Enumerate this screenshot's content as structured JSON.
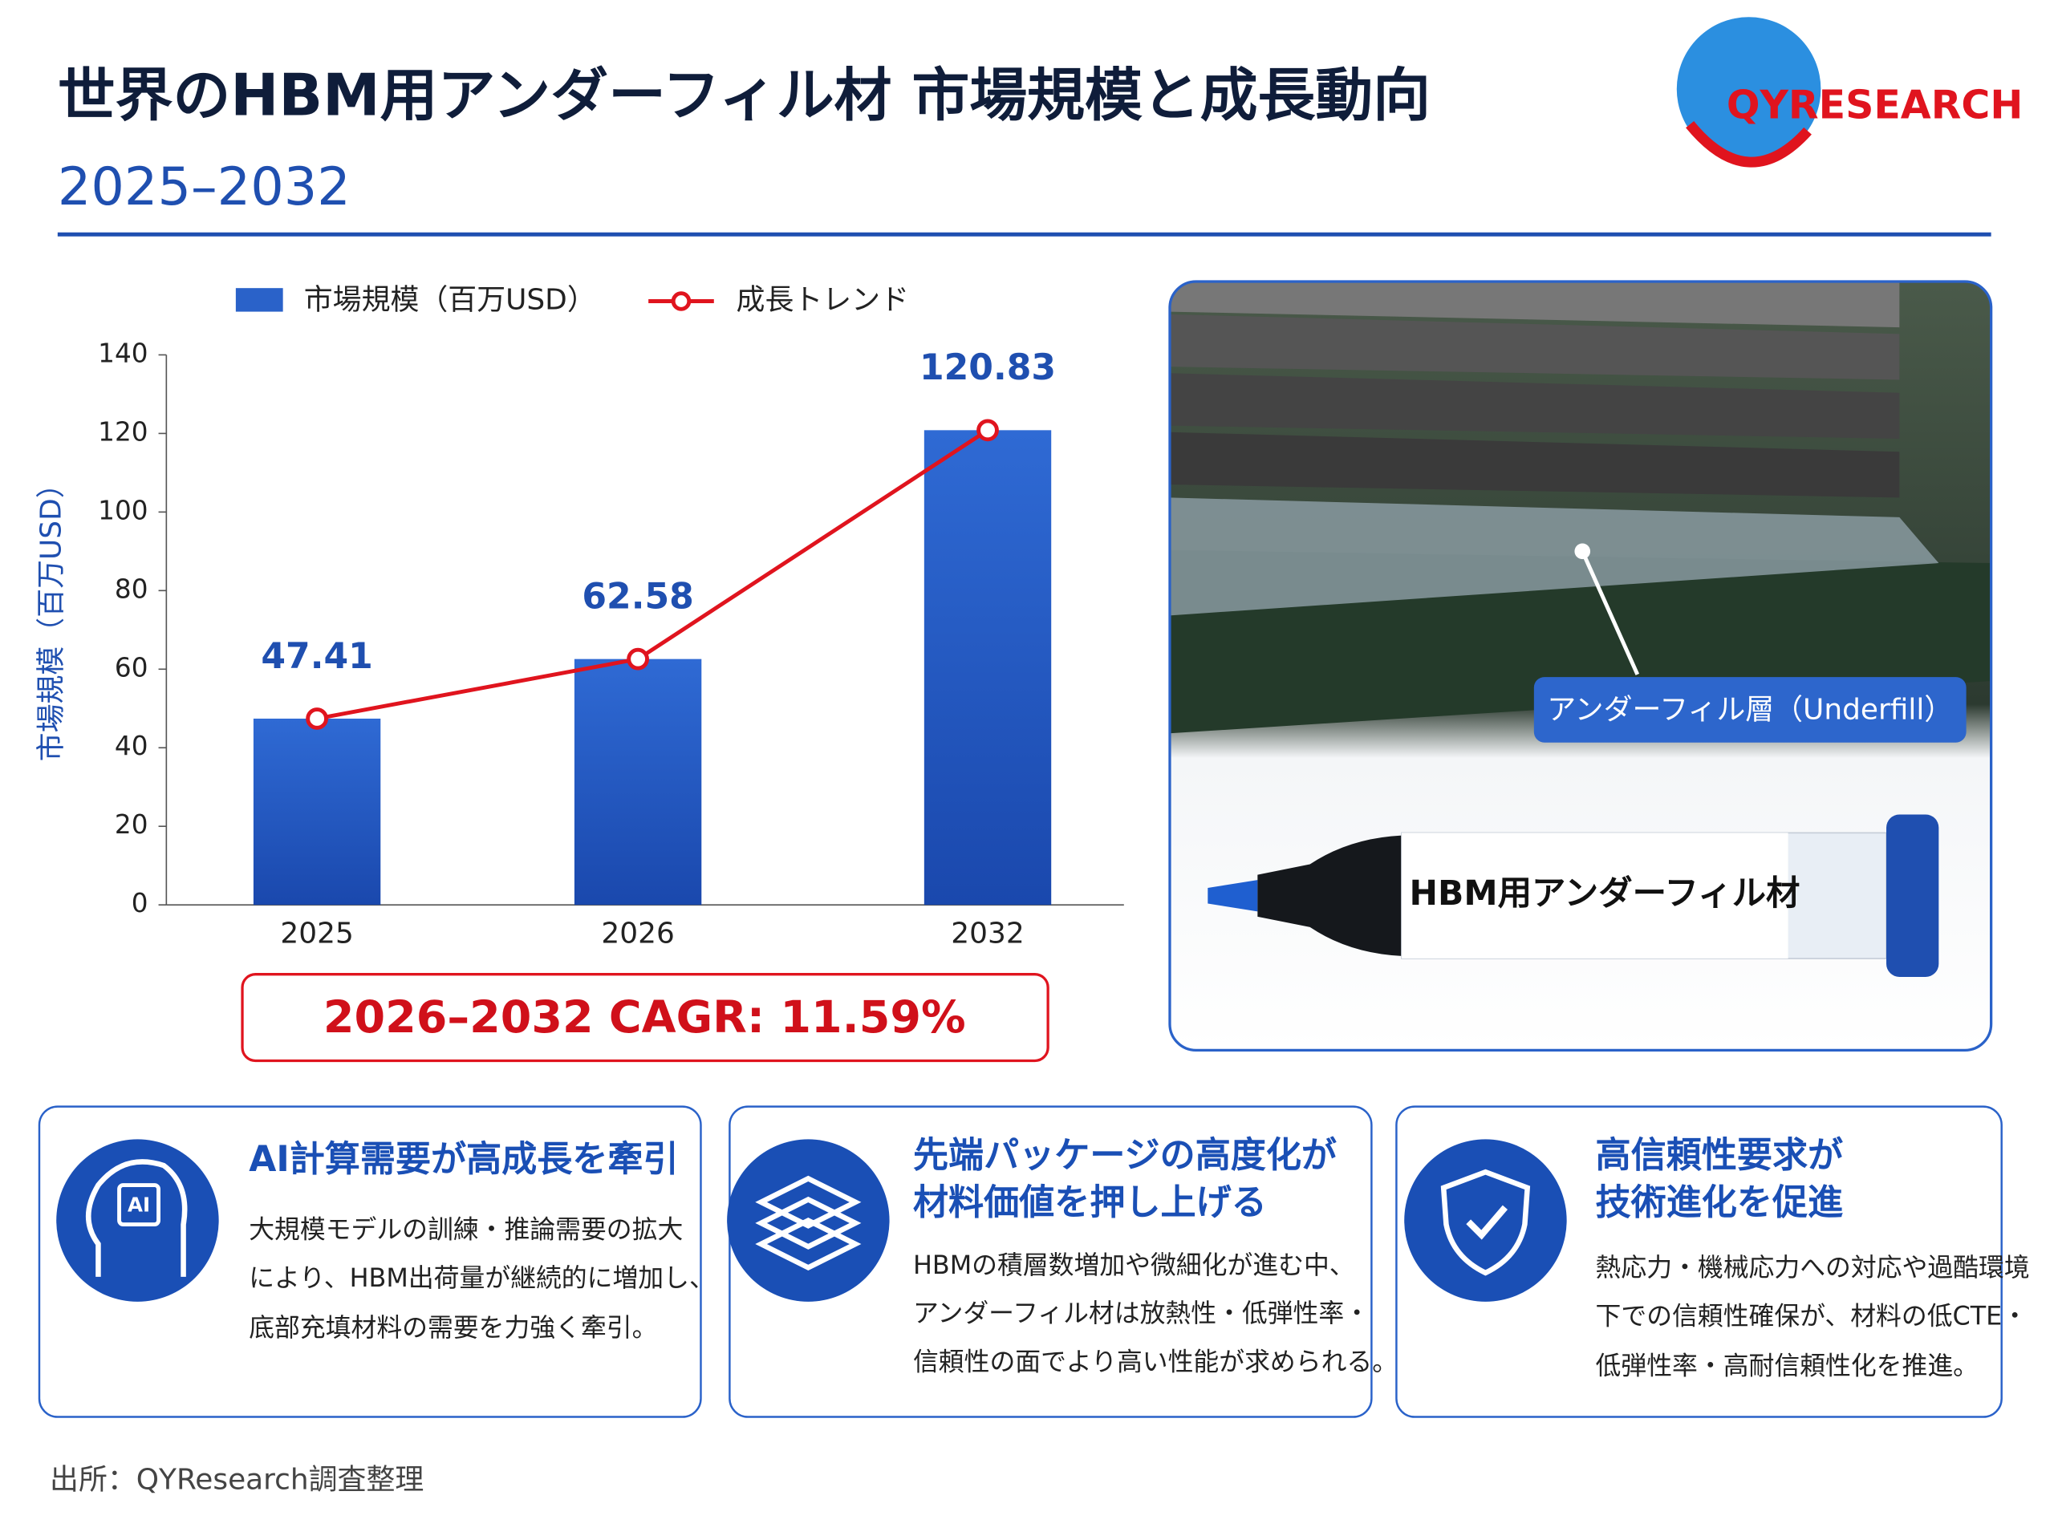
{
  "header": {
    "title": "世界のHBM用アンダーフィル材 市場規模と成長動向",
    "subtitle": "2025–2032",
    "logo": "QYRESEARCH"
  },
  "chart_data": {
    "type": "bar",
    "categories": [
      "2025",
      "2026",
      "2032"
    ],
    "series": [
      {
        "name": "市場規模（百万USD）",
        "color": "#2a62c9",
        "values": [
          47.41,
          62.58,
          120.83
        ]
      },
      {
        "name": "成長トレンド",
        "type": "line",
        "color": "#e0141e",
        "values": [
          47.41,
          62.58,
          120.83
        ]
      }
    ],
    "ylim": [
      0,
      140
    ],
    "yticks": [
      0,
      20,
      40,
      60,
      80,
      100,
      120,
      140
    ],
    "y_label": "市場規模（百万USD）",
    "annotation": "2026–2032 CAGR: 11.59%"
  },
  "image": {
    "callout": "アンダーフィル層（Underfill）",
    "product_label": "HBM用アンダーフィル材"
  },
  "cards": [
    {
      "icon": "AI",
      "title": [
        "AI計算需要が高成長を牽引"
      ],
      "body": [
        "大規模モデルの訓練・推論需要の拡大",
        "により、HBM出荷量が継続的に増加し、",
        "底部充填材料の需要を力強く牽引。"
      ]
    },
    {
      "title": [
        "先端パッケージの高度化が",
        "材料価値を押し上げる"
      ],
      "body": [
        "HBMの積層数増加や微細化が進む中、",
        "アンダーフィル材は放熱性・低弾性率・",
        "信頼性の面でより高い性能が求められる。"
      ]
    },
    {
      "title": [
        "高信頼性要求が",
        "技術進化を促進"
      ],
      "body": [
        "熱応力・機械応力への対応や過酷環境",
        "下での信頼性確保が、材料の低CTE・",
        "低弾性率・高耐信頼性化を推進。"
      ]
    }
  ],
  "source": "出所：QYResearch調査整理"
}
